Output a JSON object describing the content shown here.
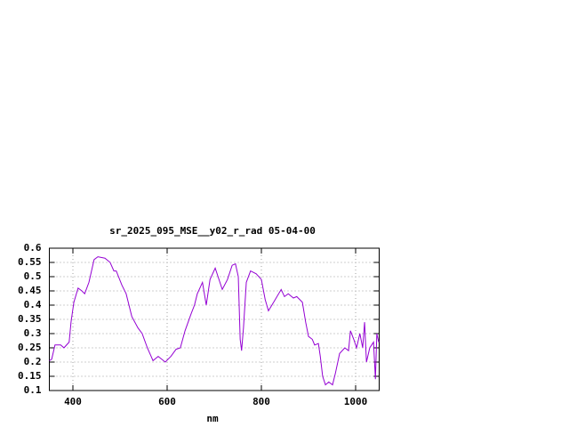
{
  "chart_data": {
    "type": "line",
    "title": "sr_2025_095_MSE__y02_r_rad 05-04-00",
    "x_label": "nm",
    "x": [
      350,
      355,
      362,
      374,
      381,
      392,
      396,
      402,
      411,
      419,
      425,
      434,
      445,
      453,
      468,
      479,
      487,
      492,
      504,
      513,
      525,
      538,
      547,
      558,
      570,
      581,
      596,
      608,
      619,
      628,
      638,
      651,
      658,
      664,
      675,
      683,
      691,
      702,
      717,
      728,
      738,
      745,
      751,
      755,
      758,
      762,
      768,
      777,
      789,
      800,
      808,
      815,
      826,
      842,
      849,
      857,
      868,
      875,
      887,
      894,
      900,
      908,
      913,
      921,
      925,
      930,
      936,
      943,
      951,
      957,
      966,
      977,
      985,
      989,
      996,
      1002,
      1009,
      1015,
      1019,
      1023,
      1030,
      1038,
      1042,
      1045,
      1049
    ],
    "values": [
      0.205,
      0.21,
      0.26,
      0.26,
      0.25,
      0.27,
      0.34,
      0.41,
      0.46,
      0.45,
      0.44,
      0.48,
      0.56,
      0.57,
      0.565,
      0.55,
      0.52,
      0.52,
      0.47,
      0.44,
      0.36,
      0.32,
      0.3,
      0.25,
      0.205,
      0.22,
      0.2,
      0.22,
      0.245,
      0.25,
      0.31,
      0.37,
      0.4,
      0.44,
      0.48,
      0.4,
      0.49,
      0.53,
      0.455,
      0.49,
      0.54,
      0.545,
      0.5,
      0.28,
      0.24,
      0.32,
      0.48,
      0.52,
      0.51,
      0.49,
      0.42,
      0.38,
      0.41,
      0.455,
      0.43,
      0.44,
      0.425,
      0.43,
      0.41,
      0.34,
      0.29,
      0.28,
      0.26,
      0.265,
      0.22,
      0.15,
      0.12,
      0.13,
      0.12,
      0.16,
      0.23,
      0.25,
      0.24,
      0.31,
      0.28,
      0.25,
      0.3,
      0.25,
      0.34,
      0.2,
      0.25,
      0.27,
      0.14,
      0.3,
      0.27
    ],
    "color": "#9400d3",
    "xlim": [
      350,
      1050
    ],
    "xticks": [
      400,
      600,
      800,
      1000
    ],
    "ylim": [
      0.1,
      0.6
    ],
    "yticks": [
      0.1,
      0.15,
      0.2,
      0.25,
      0.3,
      0.35,
      0.4,
      0.45,
      0.5,
      0.55,
      0.6
    ],
    "grid": true
  }
}
